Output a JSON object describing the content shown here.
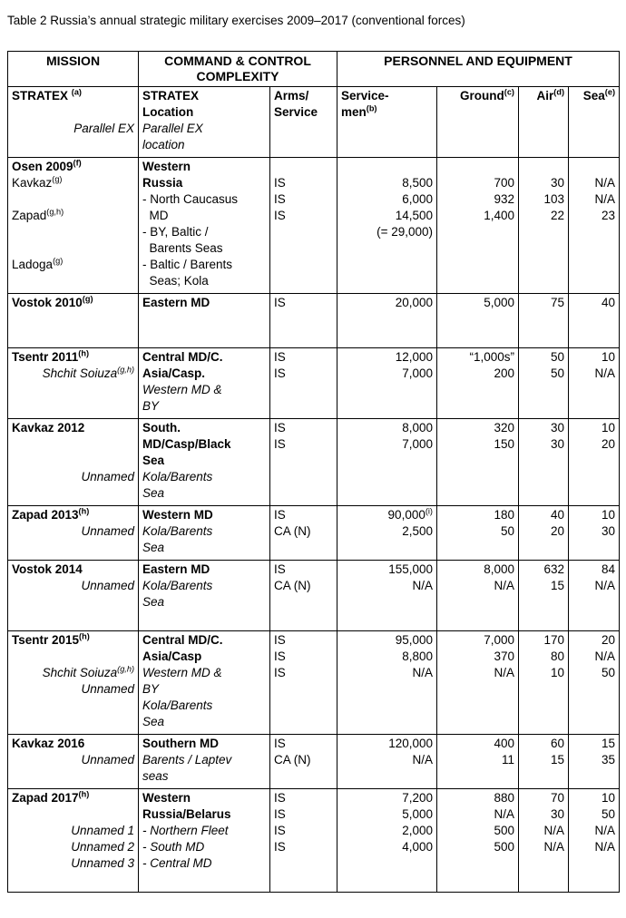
{
  "caption": "Table 2 Russia’s annual strategic military exercises 2009–2017 (conventional forces)",
  "table": {
    "top_header": {
      "mission": "MISSION",
      "command": "COMMAND & CONTROL COMPLEXITY",
      "personnel": "PERSONNEL AND EQUIPMENT"
    },
    "columns": [
      "mission",
      "location",
      "arms-service",
      "servicemen",
      "ground",
      "air",
      "sea"
    ],
    "sub_header_lines": [
      {
        "cells": [
          "STRATEX ^{(a)}",
          "STRATEX",
          "Arms/",
          "Service-",
          "Ground^{(c)}",
          "Air^{(d)}",
          "Sea^{(e)}"
        ],
        "styles": [
          "b",
          "b",
          "b",
          "bl",
          "br",
          "br",
          "br"
        ]
      },
      {
        "cells": [
          "",
          "Location",
          "Service",
          "men^{(b)}",
          "",
          "",
          ""
        ],
        "styles": [
          "",
          "b",
          "b",
          "bl",
          "",
          "",
          ""
        ]
      },
      {
        "cells": [
          "Parallel EX",
          "Parallel EX",
          "",
          "",
          "",
          "",
          ""
        ],
        "styles": [
          "ir",
          "i",
          "",
          "",
          "",
          "",
          ""
        ]
      },
      {
        "cells": [
          "",
          "location",
          "",
          "",
          "",
          "",
          ""
        ],
        "styles": [
          "",
          "i",
          "",
          "",
          "",
          "",
          ""
        ]
      }
    ],
    "groups": [
      {
        "name": "Osen 2009",
        "lines": [
          {
            "cells": [
              "Osen 2009^{(f)}",
              "Western",
              "",
              "",
              "",
              "",
              ""
            ],
            "styles": [
              "b",
              "b",
              "",
              "",
              "",
              "",
              ""
            ]
          },
          {
            "cells": [
              "Kavkaz^{(g)}",
              "Russia",
              "IS",
              "8,500",
              "700",
              "30",
              "N/A"
            ],
            "styles": [
              "",
              "b",
              "",
              "",
              "",
              "",
              ""
            ]
          },
          {
            "cells": [
              "",
              "- North Caucasus",
              "IS",
              "6,000",
              "932",
              "103",
              "N/A"
            ],
            "styles": [
              "",
              "",
              "",
              "",
              "",
              "",
              ""
            ]
          },
          {
            "cells": [
              "Zapad^{(g,h)}",
              "  MD",
              "IS",
              "14,500",
              "1,400",
              "22",
              "23"
            ],
            "styles": [
              "",
              "",
              "",
              "",
              "",
              "",
              ""
            ]
          },
          {
            "cells": [
              "",
              "- BY, Baltic /",
              "",
              "(= 29,000)",
              "",
              "",
              ""
            ],
            "styles": [
              "",
              "",
              "",
              "",
              "",
              "",
              ""
            ]
          },
          {
            "cells": [
              "",
              "  Barents Seas",
              "",
              "",
              "",
              "",
              ""
            ],
            "styles": [
              "",
              "",
              "",
              "",
              "",
              "",
              ""
            ]
          },
          {
            "cells": [
              "Ladoga^{(g)}",
              "- Baltic / Barents",
              "",
              "",
              "",
              "",
              ""
            ],
            "styles": [
              "",
              "",
              "",
              "",
              "",
              "",
              ""
            ]
          },
          {
            "cells": [
              "",
              "  Seas; Kola",
              "",
              "",
              "",
              "",
              ""
            ],
            "styles": [
              "",
              "",
              "",
              "",
              "",
              "",
              ""
            ]
          }
        ]
      },
      {
        "name": "Vostok 2010",
        "lines": [
          {
            "cells": [
              "Vostok 2010^{(g)}",
              "Eastern MD",
              "IS",
              "20,000",
              "5,000",
              "75",
              "40"
            ],
            "styles": [
              "b",
              "b",
              "",
              "",
              "",
              "",
              ""
            ]
          },
          {
            "cells": [
              "",
              "",
              "",
              "",
              "",
              "",
              ""
            ],
            "styles": [
              "",
              "",
              "",
              "",
              "",
              "",
              ""
            ]
          },
          {
            "cells": [
              "",
              "",
              "",
              "",
              "",
              "",
              ""
            ],
            "styles": [
              "",
              "",
              "",
              "",
              "",
              "",
              ""
            ]
          }
        ]
      },
      {
        "name": "Tsentr 2011",
        "lines": [
          {
            "cells": [
              "Tsentr 2011^{(h)}",
              "Central MD/C.",
              "IS",
              "12,000",
              "“1,000s”",
              "50",
              "10"
            ],
            "styles": [
              "b",
              "b",
              "",
              "",
              "",
              "",
              ""
            ]
          },
          {
            "cells": [
              "Shchit Soiuza^{(g,h)}",
              "Asia/Casp.",
              "IS",
              "7,000",
              "200",
              "50",
              "N/A"
            ],
            "styles": [
              "ir",
              "b",
              "",
              "",
              "",
              "",
              ""
            ]
          },
          {
            "cells": [
              "",
              "Western MD &",
              "",
              "",
              "",
              "",
              ""
            ],
            "styles": [
              "",
              "i",
              "",
              "",
              "",
              "",
              ""
            ]
          },
          {
            "cells": [
              "",
              "BY",
              "",
              "",
              "",
              "",
              ""
            ],
            "styles": [
              "",
              "i",
              "",
              "",
              "",
              "",
              ""
            ]
          }
        ]
      },
      {
        "name": "Kavkaz 2012",
        "lines": [
          {
            "cells": [
              "Kavkaz 2012",
              "South.",
              "IS",
              "8,000",
              "320",
              "30",
              "10"
            ],
            "styles": [
              "b",
              "b",
              "",
              "",
              "",
              "",
              ""
            ]
          },
          {
            "cells": [
              "",
              "MD/Casp/Black",
              "IS",
              "7,000",
              "150",
              "30",
              "20"
            ],
            "styles": [
              "",
              "b",
              "",
              "",
              "",
              "",
              ""
            ]
          },
          {
            "cells": [
              "",
              "Sea",
              "",
              "",
              "",
              "",
              ""
            ],
            "styles": [
              "",
              "b",
              "",
              "",
              "",
              "",
              ""
            ]
          },
          {
            "cells": [
              "Unnamed",
              "Kola/Barents",
              "",
              "",
              "",
              "",
              ""
            ],
            "styles": [
              "ir",
              "i",
              "",
              "",
              "",
              "",
              ""
            ]
          },
          {
            "cells": [
              "",
              "Sea",
              "",
              "",
              "",
              "",
              ""
            ],
            "styles": [
              "",
              "i",
              "",
              "",
              "",
              "",
              ""
            ]
          }
        ]
      },
      {
        "name": "Zapad 2013",
        "lines": [
          {
            "cells": [
              "Zapad 2013^{(h)}",
              "Western MD",
              "IS",
              "90,000^{(i)}",
              "180",
              "40",
              "10"
            ],
            "styles": [
              "b",
              "b",
              "",
              "",
              "",
              "",
              ""
            ]
          },
          {
            "cells": [
              "Unnamed",
              "Kola/Barents",
              "CA (N)",
              "2,500",
              "50",
              "20",
              "30"
            ],
            "styles": [
              "ir",
              "i",
              "",
              "",
              "",
              "",
              ""
            ]
          },
          {
            "cells": [
              "",
              "Sea",
              "",
              "",
              "",
              "",
              ""
            ],
            "styles": [
              "",
              "i",
              "",
              "",
              "",
              "",
              ""
            ]
          }
        ]
      },
      {
        "name": "Vostok 2014",
        "lines": [
          {
            "cells": [
              "Vostok 2014",
              "Eastern MD",
              "IS",
              "155,000",
              "8,000",
              "632",
              "84"
            ],
            "styles": [
              "b",
              "b",
              "",
              "",
              "",
              "",
              ""
            ]
          },
          {
            "cells": [
              "Unnamed",
              "Kola/Barents",
              "CA (N)",
              "N/A",
              "N/A",
              "15",
              "N/A"
            ],
            "styles": [
              "ir",
              "i",
              "",
              "",
              "",
              "",
              ""
            ]
          },
          {
            "cells": [
              "",
              "Sea",
              "",
              "",
              "",
              "",
              ""
            ],
            "styles": [
              "",
              "i",
              "",
              "",
              "",
              "",
              ""
            ]
          },
          {
            "cells": [
              "",
              "",
              "",
              "",
              "",
              "",
              ""
            ],
            "styles": [
              "",
              "",
              "",
              "",
              "",
              "",
              ""
            ]
          }
        ]
      },
      {
        "name": "Tsentr 2015",
        "lines": [
          {
            "cells": [
              "Tsentr 2015^{(h)}",
              "Central MD/C.",
              "IS",
              "95,000",
              "7,000",
              "170",
              "20"
            ],
            "styles": [
              "b",
              "b",
              "",
              "",
              "",
              "",
              ""
            ]
          },
          {
            "cells": [
              "",
              "Asia/Casp",
              "IS",
              "8,800",
              "370",
              "80",
              "N/A"
            ],
            "styles": [
              "",
              "b",
              "",
              "",
              "",
              "",
              ""
            ]
          },
          {
            "cells": [
              "Shchit Soiuza^{(g,h)}",
              "Western MD &",
              "IS",
              "N/A",
              "N/A",
              "10",
              "50"
            ],
            "styles": [
              "ir",
              "i",
              "",
              "",
              "",
              "",
              ""
            ]
          },
          {
            "cells": [
              "Unnamed",
              "BY",
              "",
              "",
              "",
              "",
              ""
            ],
            "styles": [
              "ir",
              "i",
              "",
              "",
              "",
              "",
              ""
            ]
          },
          {
            "cells": [
              "",
              "Kola/Barents",
              "",
              "",
              "",
              "",
              ""
            ],
            "styles": [
              "",
              "i",
              "",
              "",
              "",
              "",
              ""
            ]
          },
          {
            "cells": [
              "",
              "Sea",
              "",
              "",
              "",
              "",
              ""
            ],
            "styles": [
              "",
              "i",
              "",
              "",
              "",
              "",
              ""
            ]
          }
        ]
      },
      {
        "name": "Kavkaz 2016",
        "lines": [
          {
            "cells": [
              "Kavkaz 2016",
              "Southern MD",
              "IS",
              "120,000",
              "400",
              "60",
              "15"
            ],
            "styles": [
              "b",
              "b",
              "",
              "",
              "",
              "",
              ""
            ]
          },
          {
            "cells": [
              "Unnamed",
              "Barents / Laptev",
              "CA (N)",
              "N/A",
              "11",
              "15",
              "35"
            ],
            "styles": [
              "ir",
              "i",
              "",
              "",
              "",
              "",
              ""
            ]
          },
          {
            "cells": [
              "",
              "seas",
              "",
              "",
              "",
              "",
              ""
            ],
            "styles": [
              "",
              "i",
              "",
              "",
              "",
              "",
              ""
            ]
          }
        ]
      },
      {
        "name": "Zapad 2017",
        "lines": [
          {
            "cells": [
              "Zapad 2017^{(h)}",
              "Western",
              "IS",
              "7,200",
              "880",
              "70",
              "10"
            ],
            "styles": [
              "b",
              "b",
              "",
              "",
              "",
              "",
              ""
            ]
          },
          {
            "cells": [
              "",
              "Russia/Belarus",
              "IS",
              "5,000",
              "N/A",
              "30",
              "50"
            ],
            "styles": [
              "",
              "b",
              "",
              "",
              "",
              "",
              ""
            ]
          },
          {
            "cells": [
              "Unnamed 1",
              "- Northern Fleet",
              "IS",
              "2,000",
              "500",
              "N/A",
              "N/A"
            ],
            "styles": [
              "ir",
              "i",
              "",
              "",
              "",
              "",
              ""
            ]
          },
          {
            "cells": [
              "Unnamed 2",
              "- South MD",
              "IS",
              "4,000",
              "500",
              "N/A",
              "N/A"
            ],
            "styles": [
              "ir",
              "i",
              "",
              "",
              "",
              "",
              ""
            ]
          },
          {
            "cells": [
              "Unnamed 3",
              "- Central MD",
              "",
              "",
              "",
              "",
              ""
            ],
            "styles": [
              "ir",
              "i",
              "",
              "",
              "",
              "",
              ""
            ]
          },
          {
            "cells": [
              "",
              "",
              "",
              "",
              "",
              "",
              ""
            ],
            "styles": [
              "",
              "",
              "",
              "",
              "",
              "",
              ""
            ]
          }
        ]
      }
    ]
  }
}
